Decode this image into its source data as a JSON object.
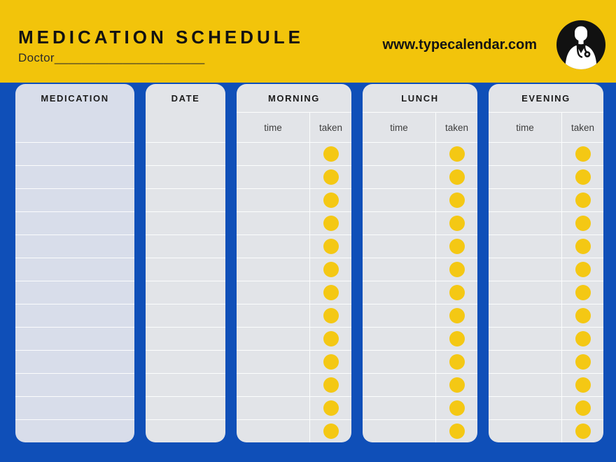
{
  "colors": {
    "page-bg": "#0F4FB8",
    "header-bg": "#F2C40B",
    "card-bg": "#E2E4E8",
    "med-card-bg": "#D8DDEA",
    "dot": "#F4C814",
    "line": "rgba(255,255,255,0.9)",
    "title-color": "#121212",
    "subtext-color": "#3E3E3E",
    "logo-bg": "#111111"
  },
  "header": {
    "title": "MEDICATION SCHEDULE",
    "doctor_line": "Doctor______________________",
    "website": "www.typecalendar.com"
  },
  "table": {
    "row_count": 13,
    "time_label": "time",
    "taken_label": "taken",
    "columns": [
      {
        "label": "MEDICATION"
      },
      {
        "label": "DATE"
      },
      {
        "label": "MORNING"
      },
      {
        "label": "LUNCH"
      },
      {
        "label": "EVENING"
      }
    ]
  }
}
